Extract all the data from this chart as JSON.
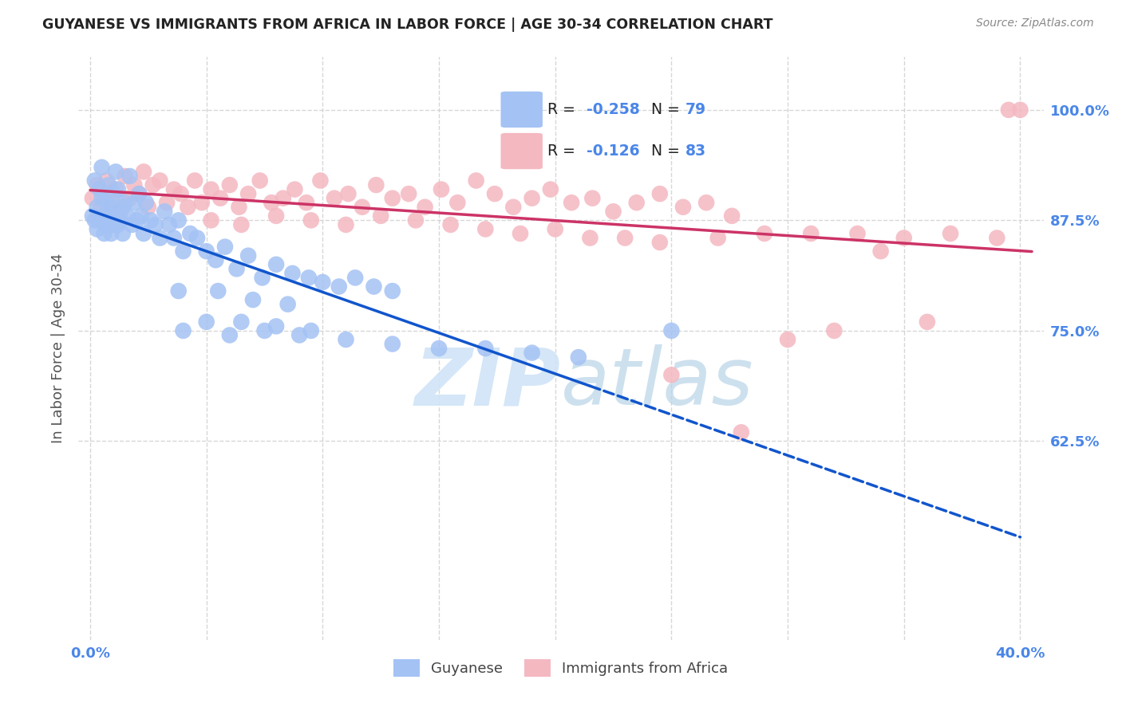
{
  "title": "GUYANESE VS IMMIGRANTS FROM AFRICA IN LABOR FORCE | AGE 30-34 CORRELATION CHART",
  "source": "Source: ZipAtlas.com",
  "ylabel": "In Labor Force | Age 30-34",
  "xlim": [
    -0.005,
    0.41
  ],
  "ylim": [
    0.4,
    1.06
  ],
  "y_ticks": [
    0.625,
    0.75,
    0.875,
    1.0
  ],
  "x_ticks": [
    0.0,
    0.05,
    0.1,
    0.15,
    0.2,
    0.25,
    0.3,
    0.35,
    0.4
  ],
  "legend_blue_label": "Guyanese",
  "legend_pink_label": "Immigrants from Africa",
  "blue_color": "#a4c2f4",
  "pink_color": "#f4b8c1",
  "blue_line_color": "#1155cc",
  "pink_line_color": "#cc3366",
  "watermark_color": "#d0e4f7",
  "background_color": "#ffffff",
  "grid_color": "#cccccc",
  "tick_color": "#4a86e8",
  "blue_r": "-0.258",
  "blue_n": "79",
  "pink_r": "-0.126",
  "pink_n": "83"
}
